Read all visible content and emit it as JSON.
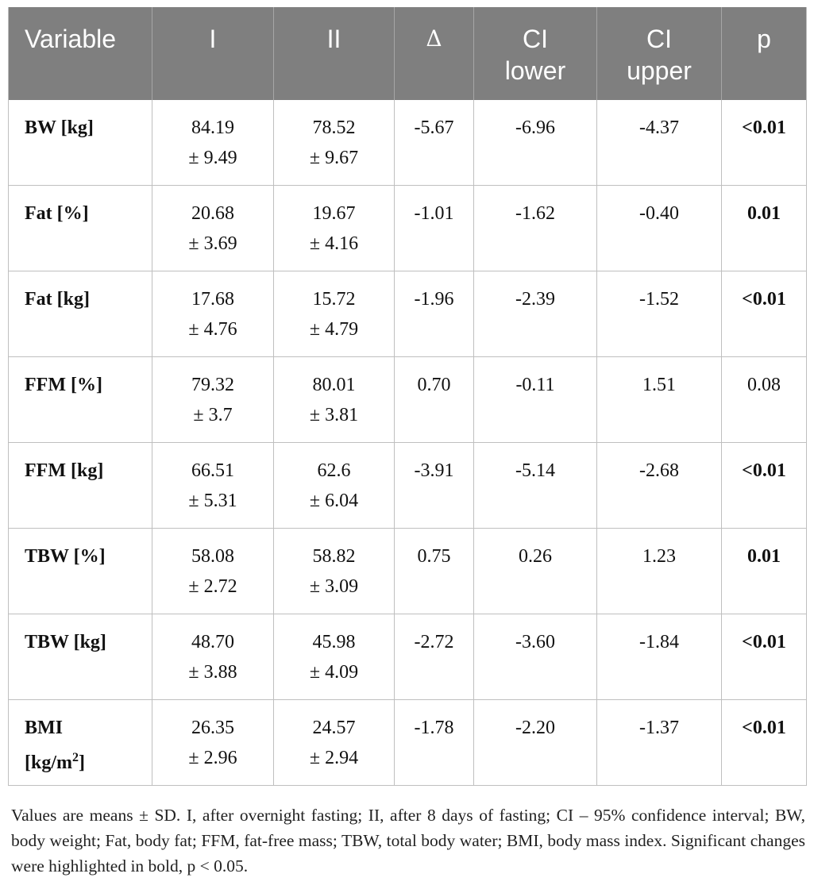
{
  "table": {
    "headers": {
      "variable": "Variable",
      "i": "I",
      "ii": "II",
      "delta": "Δ",
      "ci_lower": [
        "CI",
        "lower"
      ],
      "ci_upper": [
        "CI",
        "upper"
      ],
      "p": "p"
    },
    "rows": [
      {
        "variable": [
          "BW [kg]"
        ],
        "i": [
          "84.19",
          "± 9.49"
        ],
        "ii": [
          "78.52",
          "± 9.67"
        ],
        "delta": "-5.67",
        "ci_lower": "-6.96",
        "ci_upper": "-4.37",
        "p": "<0.01",
        "p_bold": true
      },
      {
        "variable": [
          "Fat [%]"
        ],
        "i": [
          "20.68",
          "± 3.69"
        ],
        "ii": [
          "19.67",
          "± 4.16"
        ],
        "delta": "-1.01",
        "ci_lower": "-1.62",
        "ci_upper": "-0.40",
        "p": "0.01",
        "p_bold": true
      },
      {
        "variable": [
          "Fat [kg]"
        ],
        "i": [
          "17.68",
          "± 4.76"
        ],
        "ii": [
          "15.72",
          "± 4.79"
        ],
        "delta": "-1.96",
        "ci_lower": "-2.39",
        "ci_upper": "-1.52",
        "p": "<0.01",
        "p_bold": true
      },
      {
        "variable": [
          "FFM [%]"
        ],
        "i": [
          "79.32",
          "± 3.7"
        ],
        "ii": [
          "80.01",
          "± 3.81"
        ],
        "delta": "0.70",
        "ci_lower": "-0.11",
        "ci_upper": "1.51",
        "p": "0.08",
        "p_bold": false
      },
      {
        "variable": [
          "FFM [kg]"
        ],
        "i": [
          "66.51",
          "± 5.31"
        ],
        "ii": [
          "62.6",
          "± 6.04"
        ],
        "delta": "-3.91",
        "ci_lower": "-5.14",
        "ci_upper": "-2.68",
        "p": "<0.01",
        "p_bold": true
      },
      {
        "variable": [
          "TBW [%]"
        ],
        "i": [
          "58.08",
          "± 2.72"
        ],
        "ii": [
          "58.82",
          "± 3.09"
        ],
        "delta": "0.75",
        "ci_lower": "0.26",
        "ci_upper": "1.23",
        "p": "0.01",
        "p_bold": true
      },
      {
        "variable": [
          "TBW [kg]"
        ],
        "i": [
          "48.70",
          "± 3.88"
        ],
        "ii": [
          "45.98",
          "± 4.09"
        ],
        "delta": "-2.72",
        "ci_lower": "-3.60",
        "ci_upper": "-1.84",
        "p": "<0.01",
        "p_bold": true
      },
      {
        "variable": [
          "BMI",
          "[kg/m",
          "2",
          "]"
        ],
        "i": [
          "26.35",
          "± 2.96"
        ],
        "ii": [
          "24.57",
          "± 2.94"
        ],
        "delta": "-1.78",
        "ci_lower": "-2.20",
        "ci_upper": "-1.37",
        "p": "<0.01",
        "p_bold": true
      }
    ]
  },
  "footnote": "Values are means ± SD. I, after overnight fasting; II, after 8 days of fasting; CI – 95% confidence interval; BW, body weight; Fat, body fat; FFM, fat-free mass; TBW, total body water; BMI, body mass index. Significant changes were highlighted in bold, p < 0.05."
}
